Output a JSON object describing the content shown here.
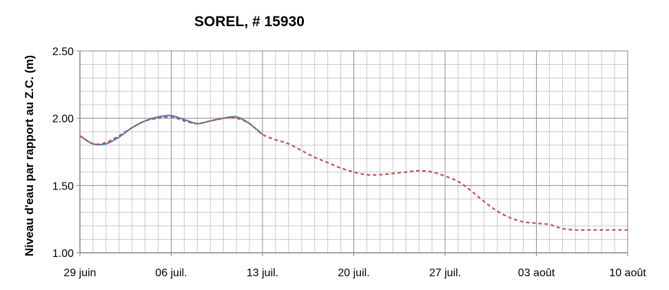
{
  "chart_data": {
    "type": "line",
    "title": "SOREL, # 15930",
    "ylabel": "Niveau d'eau par rapport  au Z.C. (m)",
    "xlabel": "",
    "x_axis": {
      "start": "2011-06-29",
      "end": "2011-08-10",
      "tick_labels": [
        "29 juin",
        "06 juil.",
        "13 juil.",
        "20 juil.",
        "27 juil.",
        "03 août",
        "10 août"
      ],
      "tick_dates": [
        "2011-06-29",
        "2011-07-06",
        "2011-07-13",
        "2011-07-20",
        "2011-07-27",
        "2011-08-03",
        "2011-08-10"
      ],
      "minor_grid": "daily"
    },
    "y_axis": {
      "ylim": [
        1.0,
        2.5
      ],
      "tick_labels": [
        "1.00",
        "1.50",
        "2.00",
        "2.50"
      ],
      "tick_values": [
        1.0,
        1.5,
        2.0,
        2.5
      ],
      "minor_step": 0.1
    },
    "grid": true,
    "legend": "none",
    "series": [
      {
        "style": "solid",
        "color": "#4f81bd",
        "points": [
          [
            "2011-06-29",
            1.87
          ],
          [
            "2011-06-30",
            1.81
          ],
          [
            "2011-07-01",
            1.81
          ],
          [
            "2011-07-02",
            1.86
          ],
          [
            "2011-07-03",
            1.93
          ],
          [
            "2011-07-04",
            1.98
          ],
          [
            "2011-07-05",
            2.01
          ],
          [
            "2011-07-06",
            2.02
          ],
          [
            "2011-07-07",
            1.99
          ],
          [
            "2011-07-08",
            1.96
          ],
          [
            "2011-07-09",
            1.98
          ],
          [
            "2011-07-10",
            2.0
          ],
          [
            "2011-07-11",
            2.01
          ],
          [
            "2011-07-12",
            1.96
          ],
          [
            "2011-07-13",
            1.88
          ]
        ]
      },
      {
        "style": "dashed",
        "color": "#c0504d",
        "points": [
          [
            "2011-06-29",
            1.87
          ],
          [
            "2011-06-30",
            1.81
          ],
          [
            "2011-07-01",
            1.82
          ],
          [
            "2011-07-02",
            1.87
          ],
          [
            "2011-07-03",
            1.93
          ],
          [
            "2011-07-04",
            1.98
          ],
          [
            "2011-07-05",
            2.0
          ],
          [
            "2011-07-06",
            2.01
          ],
          [
            "2011-07-07",
            1.98
          ],
          [
            "2011-07-08",
            1.96
          ],
          [
            "2011-07-09",
            1.98
          ],
          [
            "2011-07-10",
            2.0
          ],
          [
            "2011-07-11",
            2.0
          ],
          [
            "2011-07-12",
            1.96
          ],
          [
            "2011-07-13",
            1.88
          ],
          [
            "2011-07-14",
            1.84
          ],
          [
            "2011-07-15",
            1.81
          ],
          [
            "2011-07-16",
            1.76
          ],
          [
            "2011-07-17",
            1.71
          ],
          [
            "2011-07-18",
            1.67
          ],
          [
            "2011-07-19",
            1.63
          ],
          [
            "2011-07-20",
            1.6
          ],
          [
            "2011-07-21",
            1.58
          ],
          [
            "2011-07-22",
            1.58
          ],
          [
            "2011-07-23",
            1.59
          ],
          [
            "2011-07-24",
            1.6
          ],
          [
            "2011-07-25",
            1.61
          ],
          [
            "2011-07-26",
            1.6
          ],
          [
            "2011-07-27",
            1.57
          ],
          [
            "2011-07-28",
            1.53
          ],
          [
            "2011-07-29",
            1.46
          ],
          [
            "2011-07-30",
            1.38
          ],
          [
            "2011-07-31",
            1.31
          ],
          [
            "2011-08-01",
            1.26
          ],
          [
            "2011-08-02",
            1.23
          ],
          [
            "2011-08-03",
            1.22
          ],
          [
            "2011-08-04",
            1.21
          ],
          [
            "2011-08-05",
            1.18
          ],
          [
            "2011-08-06",
            1.17
          ],
          [
            "2011-08-07",
            1.17
          ],
          [
            "2011-08-08",
            1.17
          ],
          [
            "2011-08-09",
            1.17
          ],
          [
            "2011-08-10",
            1.17
          ]
        ]
      }
    ]
  }
}
